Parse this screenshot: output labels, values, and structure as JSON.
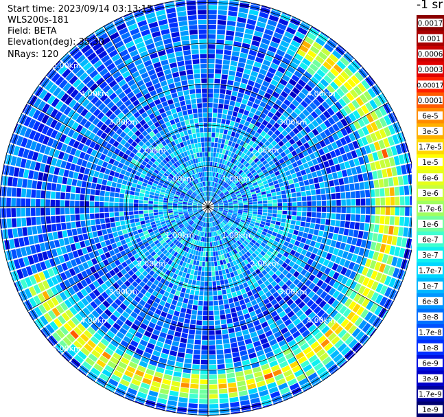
{
  "info": {
    "start_time": "Start time: 2023/09/14 03:13:15",
    "instrument": "WLS200s-181",
    "field": "Field: BETA",
    "elevation": "Elevation(deg): 35.30",
    "nrays": "NRays: 120"
  },
  "colorbar": {
    "title": "-1 sr",
    "labels": [
      "0.0017",
      "0.001",
      "0.0006",
      "0.0003",
      "0.00017",
      "0.0001",
      "6e-5",
      "3e-5",
      "1.7e-5",
      "1e-5",
      "6e-6",
      "3e-6",
      "1.7e-6",
      "1e-6",
      "6e-7",
      "3e-7",
      "1.7e-7",
      "1e-7",
      "6e-8",
      "3e-8",
      "1.7e-8",
      "1e-8",
      "6e-9",
      "3e-9",
      "1.7e-9",
      "1e-9"
    ],
    "colors": [
      "#8b0000",
      "#a80000",
      "#c80000",
      "#e00000",
      "#ff2000",
      "#ff5a00",
      "#ff8c00",
      "#ffb000",
      "#ffd700",
      "#ffff00",
      "#e6ff1a",
      "#c8ff3c",
      "#a0ff60",
      "#70ffa0",
      "#40ffd0",
      "#10f0f0",
      "#00d8ff",
      "#00b8ff",
      "#0096ff",
      "#0070ff",
      "#0050ff",
      "#0030ff",
      "#0010e0",
      "#0000c8",
      "#00009a",
      "#000070"
    ]
  },
  "chart_data": {
    "type": "heatmap",
    "projection": "polar (PPI scan)",
    "field": "BETA",
    "nrays": 120,
    "range_rings_km": [
      1,
      2,
      3,
      4,
      5
    ],
    "ring_labels": [
      "1.00km",
      "2.00km",
      "3.00km",
      "4.00km",
      "5.00km"
    ],
    "ring_label_text": [
      {
        "ring": "1.00km",
        "count": 4
      },
      {
        "ring": "2.00km",
        "count": 4
      },
      {
        "ring": "3.00km",
        "count": 4
      },
      {
        "ring": "4.00km",
        "count": 4
      },
      {
        "ring": "5.00km",
        "count": 2
      }
    ],
    "max_range_km": 5.1,
    "color_scale": "log",
    "value_range": [
      1e-09,
      0.0017
    ],
    "pattern": {
      "typical_background_value": 3e-08,
      "ring_feature_value": 1e-05,
      "ring_feature_sector_deg": "north-east through south-west (clockwise)",
      "ring_feature_range_km": [
        4.2,
        4.8
      ]
    }
  }
}
